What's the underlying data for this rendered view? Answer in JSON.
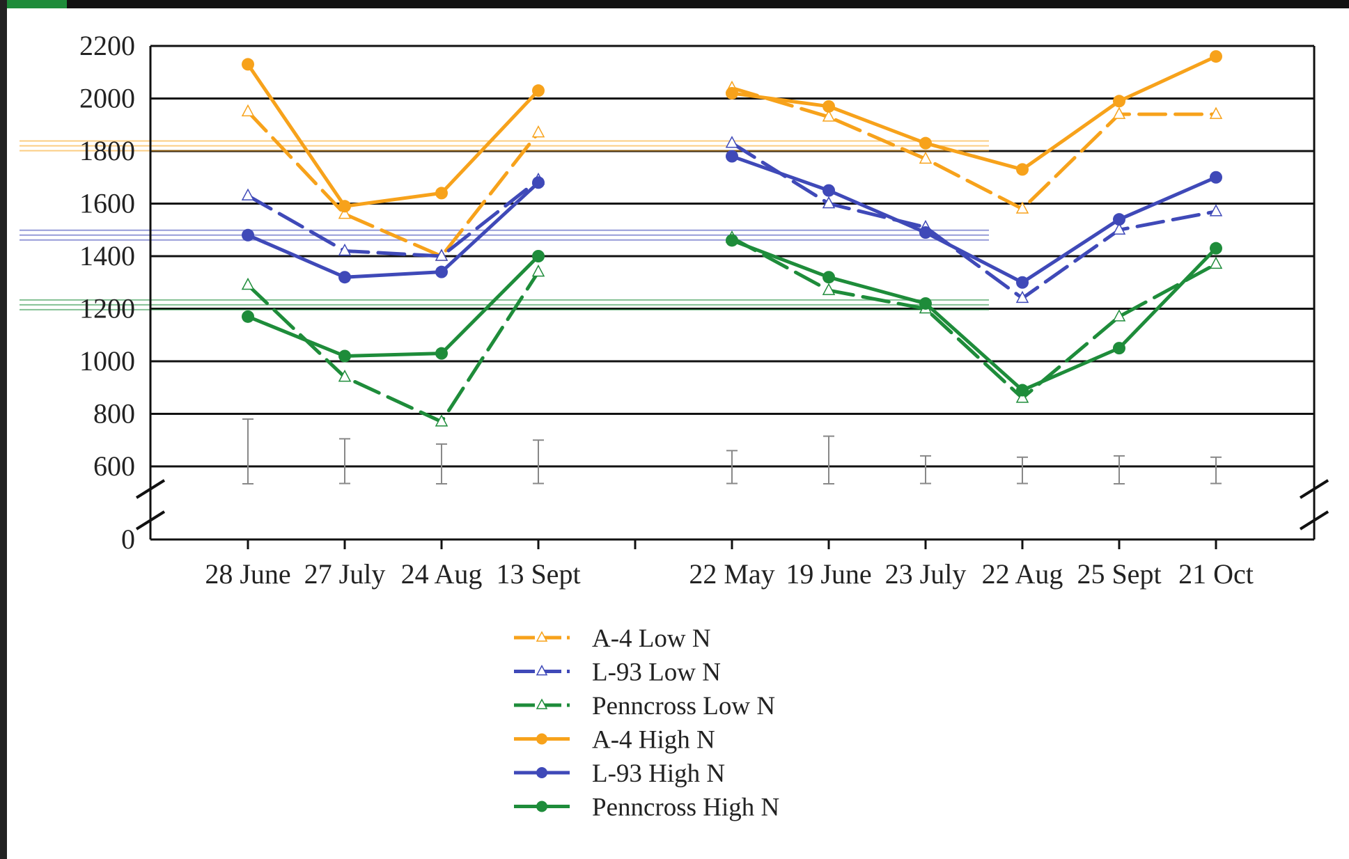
{
  "chart_data": {
    "type": "line",
    "categories": [
      "28 June",
      "27 July",
      "24 Aug",
      "13 Sept",
      "",
      "22 May",
      "19 June",
      "23 July",
      "22 Aug",
      "25 Sept",
      "21 Oct"
    ],
    "y_ticks": [
      0,
      600,
      800,
      1000,
      1200,
      1400,
      1600,
      1800,
      2000,
      2200
    ],
    "ylim_upper": [
      600,
      2200
    ],
    "axis_break": true,
    "grid": true,
    "legend_position": "bottom-center",
    "series": [
      {
        "name": "A-4 Low N",
        "color": "#F7A21B",
        "style": "dashed",
        "marker": "open-triangle",
        "values": [
          1950,
          1560,
          1400,
          1870,
          null,
          2040,
          1930,
          1770,
          1580,
          1940,
          1940
        ]
      },
      {
        "name": "L-93 Low N",
        "color": "#3F49B8",
        "style": "dashed",
        "marker": "open-triangle",
        "values": [
          1630,
          1420,
          1400,
          1690,
          null,
          1830,
          1600,
          1510,
          1240,
          1500,
          1570
        ]
      },
      {
        "name": "Penncross Low N",
        "color": "#1E8C3A",
        "style": "dashed",
        "marker": "open-triangle",
        "values": [
          1290,
          940,
          770,
          1340,
          null,
          1470,
          1270,
          1200,
          860,
          1170,
          1370
        ]
      },
      {
        "name": "A-4 High N",
        "color": "#F7A21B",
        "style": "solid",
        "marker": "filled-circle",
        "values": [
          2130,
          1590,
          1640,
          2030,
          null,
          2020,
          1970,
          1830,
          1730,
          1990,
          2160
        ]
      },
      {
        "name": "L-93 High N",
        "color": "#3F49B8",
        "style": "solid",
        "marker": "filled-circle",
        "values": [
          1480,
          1320,
          1340,
          1680,
          null,
          1780,
          1650,
          1490,
          1300,
          1540,
          1700
        ]
      },
      {
        "name": "Penncross High N",
        "color": "#1E8C3A",
        "style": "solid",
        "marker": "filled-circle",
        "values": [
          1170,
          1020,
          1030,
          1400,
          null,
          1460,
          1320,
          1220,
          890,
          1050,
          1430
        ]
      }
    ],
    "mean_lines": [
      {
        "color": "#F7A21B",
        "value": 1820
      },
      {
        "color": "#3F49B8",
        "value": 1480
      },
      {
        "color": "#1E8C3A",
        "value": 1215
      }
    ],
    "error_bars": [
      {
        "low": 530,
        "high": 780
      },
      {
        "low": 535,
        "high": 705
      },
      {
        "low": 525,
        "high": 685
      },
      {
        "low": 535,
        "high": 700
      },
      null,
      {
        "low": 535,
        "high": 660
      },
      {
        "low": 525,
        "high": 715
      },
      {
        "low": 535,
        "high": 640
      },
      {
        "low": 535,
        "high": 635
      },
      {
        "low": 530,
        "high": 640
      },
      {
        "low": 535,
        "high": 635
      }
    ]
  }
}
